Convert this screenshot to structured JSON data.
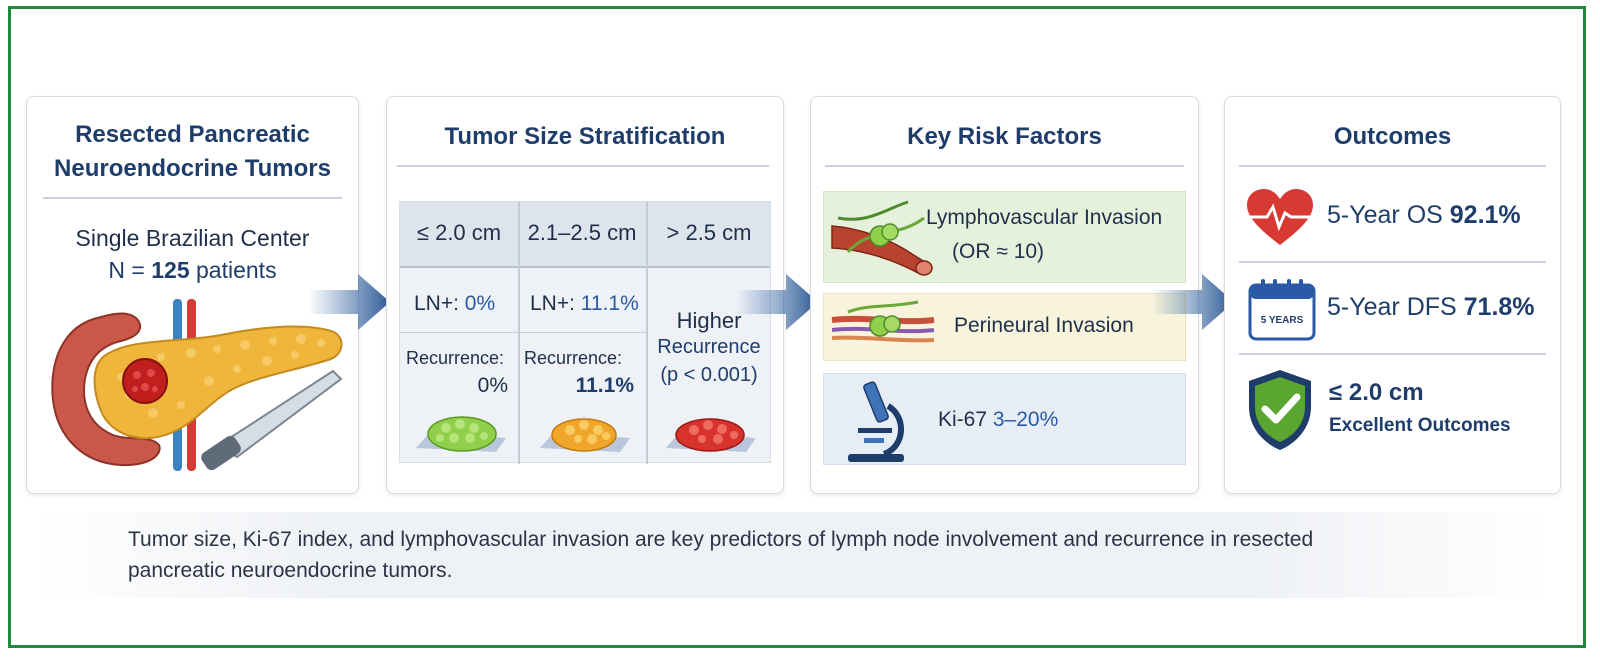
{
  "card1": {
    "title_line1": "Resected Pancreatic",
    "title_line2": "Neuroendocrine Tumors",
    "center": "Single Brazilian Center",
    "n_prefix": "N = ",
    "n_value": "125",
    "n_suffix": " patients"
  },
  "card2": {
    "title": "Tumor Size Stratification",
    "columns": [
      {
        "header": "≤ 2.0 cm",
        "ln_label": "LN+: ",
        "ln_value": "0%",
        "rec_label": "Recurrence:",
        "rec_value": "0%"
      },
      {
        "header": "2.1–2.5 cm",
        "ln_label": "LN+: ",
        "ln_value": "11.1%",
        "rec_label": "Recurrence:",
        "rec_value": "11.1%"
      },
      {
        "header": "> 2.5 cm",
        "line1": "Higher",
        "line2": "Recurrence",
        "line3": "(p < 0.001)"
      }
    ]
  },
  "card3": {
    "title": "Key Risk Factors",
    "lvi_label": "Lymphovascular Invasion",
    "lvi_or": "(OR ≈ 10)",
    "pni_label": "Perineural Invasion",
    "ki67_label": "Ki-67 ",
    "ki67_value": "3–20%"
  },
  "card4": {
    "title": "Outcomes",
    "os_label": "5-Year OS ",
    "os_value": "92.1%",
    "dfs_label": "5-Year DFS ",
    "dfs_value": "71.8%",
    "calendar_text": "5 YEARS",
    "size_label": "≤ 2.0 cm",
    "size_desc": "Excellent Outcomes"
  },
  "footer": {
    "line1": "Tumor size, Ki-67 index, and lymphovascular invasion are key predictors of lymph node involvement and recurrence in resected",
    "line2": "pancreatic neuroendocrine tumors."
  },
  "colors": {
    "frame": "#1f8a3a",
    "title_blue": "#1f3d6b",
    "value_blue": "#2a5aa5",
    "green_panel": "#e6f1dc",
    "yellow_panel": "#f8f4dc",
    "blue_panel": "#e7edf5"
  },
  "icons": [
    "pancreas-illustration",
    "scalpel-icon",
    "tumor-tissue-icon",
    "blood-vessel-icon",
    "nerve-icon",
    "microscope-icon",
    "heart-pulse-icon",
    "calendar-icon",
    "shield-check-icon",
    "arrow-right-icon"
  ]
}
